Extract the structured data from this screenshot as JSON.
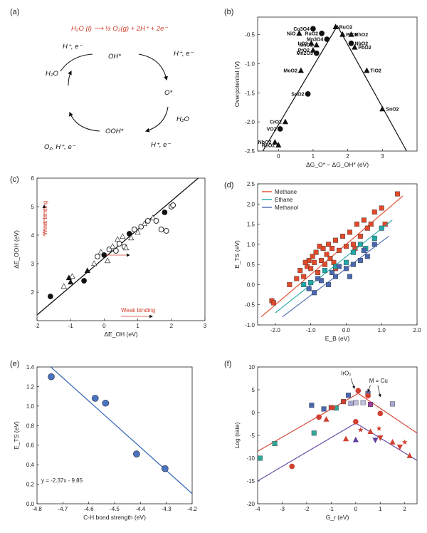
{
  "panels": {
    "a": {
      "label": "(a)",
      "equation": "H₂O (l) ⟶ ½ O₂(g) + 2H⁺ + 2e⁻",
      "species": [
        "OH*",
        "O*",
        "OOH*",
        "H₂O"
      ],
      "steps": [
        "H₂O",
        "H⁺, e⁻",
        "H⁺, e⁻",
        "H₂O",
        "H⁺, e⁻",
        "O₂, H⁺, e⁻"
      ]
    },
    "b": {
      "label": "(b)"
    },
    "c": {
      "label": "(c)"
    },
    "d": {
      "label": "(d)"
    },
    "e": {
      "label": "(e)"
    },
    "f": {
      "label": "(f)"
    }
  },
  "chart_data": [
    {
      "id": "b",
      "type": "scatter",
      "title": "",
      "xlabel": "ΔG_O* − ΔG_OH* (eV)",
      "ylabel": "Overpotential (V)",
      "xlim": [
        -0.6,
        4.0
      ],
      "ylim": [
        -2.5,
        -0.2
      ],
      "xticks": [
        0,
        1,
        2,
        3
      ],
      "yticks": [
        -2.5,
        -2.0,
        -1.5,
        -1.0,
        -0.5
      ],
      "volcano_line": [
        [
          -0.45,
          -2.5
        ],
        [
          1.7,
          -0.35
        ],
        [
          3.7,
          -2.5
        ]
      ],
      "points": [
        {
          "label": "Co3O4",
          "x": 1.0,
          "y": -0.4
        },
        {
          "label": "RuO2",
          "x": 1.65,
          "y": -0.37
        },
        {
          "label": "NiO",
          "x": 0.6,
          "y": -0.48
        },
        {
          "label": "RuO2",
          "x": 1.25,
          "y": -0.48
        },
        {
          "label": "PtO2",
          "x": 1.85,
          "y": -0.5
        },
        {
          "label": "RhO2",
          "x": 2.1,
          "y": -0.5
        },
        {
          "label": "Mn3O4",
          "x": 1.4,
          "y": -0.58
        },
        {
          "label": "IrO2",
          "x": 0.95,
          "y": -0.65
        },
        {
          "label": "MnO2",
          "x": 1.1,
          "y": -0.68
        },
        {
          "label": "NbO2",
          "x": 2.1,
          "y": -0.65
        },
        {
          "label": "PbO2",
          "x": 2.2,
          "y": -0.72
        },
        {
          "label": "PtO2",
          "x": 1.0,
          "y": -0.77
        },
        {
          "label": "Mn2O3",
          "x": 1.1,
          "y": -0.82
        },
        {
          "label": "MoO2",
          "x": 0.65,
          "y": -1.12
        },
        {
          "label": "TiO2",
          "x": 2.55,
          "y": -1.12
        },
        {
          "label": "SnO2",
          "x": 0.85,
          "y": -1.52
        },
        {
          "label": "SnO2",
          "x": 3.0,
          "y": -1.78
        },
        {
          "label": "CrO2",
          "x": 0.2,
          "y": -2.0
        },
        {
          "label": "VO2",
          "x": 0.05,
          "y": -2.12
        },
        {
          "label": "NbO2",
          "x": -0.1,
          "y": -2.35
        },
        {
          "label": "ReO2",
          "x": 0.0,
          "y": -2.4
        }
      ]
    },
    {
      "id": "c",
      "type": "scatter",
      "title": "",
      "xlabel": "ΔE_OH (eV)",
      "ylabel": "ΔE_OOH (eV)",
      "xlim": [
        -2,
        3
      ],
      "ylim": [
        1,
        6
      ],
      "xticks": [
        -2,
        -1,
        0,
        1,
        2,
        3
      ],
      "yticks": [
        2,
        3,
        4,
        5,
        6
      ],
      "fit_line": {
        "slope": 1.0,
        "intercept": 3.2
      },
      "annotations": [
        "Weak binding",
        "Weak binding"
      ],
      "points": [
        {
          "x": -1.6,
          "y": 1.85,
          "m": "circle"
        },
        {
          "x": -1.2,
          "y": 2.2,
          "m": "triangle"
        },
        {
          "x": -1.0,
          "y": 2.35,
          "m": "triangle"
        },
        {
          "x": -0.95,
          "y": 2.55,
          "m": "triangle"
        },
        {
          "x": -1.05,
          "y": 2.5,
          "m": "triangle"
        },
        {
          "x": -0.6,
          "y": 2.4,
          "m": "circle"
        },
        {
          "x": -0.5,
          "y": 2.75,
          "m": "triangle"
        },
        {
          "x": -0.3,
          "y": 3.0,
          "m": "triangle"
        },
        {
          "x": -0.2,
          "y": 3.25,
          "m": "circle"
        },
        {
          "x": -0.1,
          "y": 3.4,
          "m": "triangle"
        },
        {
          "x": 0.0,
          "y": 3.3,
          "m": "circle"
        },
        {
          "x": 0.1,
          "y": 3.1,
          "m": "triangle"
        },
        {
          "x": 0.15,
          "y": 3.5,
          "m": "circle"
        },
        {
          "x": 0.25,
          "y": 3.6,
          "m": "triangle"
        },
        {
          "x": 0.35,
          "y": 3.45,
          "m": "circle"
        },
        {
          "x": 0.4,
          "y": 3.85,
          "m": "triangle"
        },
        {
          "x": 0.45,
          "y": 3.7,
          "m": "circle"
        },
        {
          "x": 0.55,
          "y": 3.95,
          "m": "triangle"
        },
        {
          "x": 0.6,
          "y": 3.6,
          "m": "circle"
        },
        {
          "x": 0.65,
          "y": 3.55,
          "m": "triangle"
        },
        {
          "x": 0.75,
          "y": 4.05,
          "m": "circle"
        },
        {
          "x": 0.8,
          "y": 3.9,
          "m": "triangle"
        },
        {
          "x": 0.9,
          "y": 4.2,
          "m": "circle"
        },
        {
          "x": 1.0,
          "y": 4.1,
          "m": "triangle"
        },
        {
          "x": 1.1,
          "y": 4.3,
          "m": "circle"
        },
        {
          "x": 1.2,
          "y": 4.4,
          "m": "triangle"
        },
        {
          "x": 1.3,
          "y": 4.5,
          "m": "circle"
        },
        {
          "x": 1.45,
          "y": 4.6,
          "m": "triangle"
        },
        {
          "x": 1.55,
          "y": 4.5,
          "m": "circle"
        },
        {
          "x": 1.7,
          "y": 4.2,
          "m": "circle"
        },
        {
          "x": 1.8,
          "y": 4.8,
          "m": "circle"
        },
        {
          "x": 1.85,
          "y": 4.15,
          "m": "circle"
        },
        {
          "x": 2.0,
          "y": 5.0,
          "m": "circle"
        },
        {
          "x": 2.05,
          "y": 5.05,
          "m": "circle"
        }
      ]
    },
    {
      "id": "d",
      "type": "scatter",
      "title": "",
      "xlabel": "E_B (eV)",
      "ylabel": "E_TS (eV)",
      "xlim": [
        -2.5,
        2.0
      ],
      "ylim": [
        -1.0,
        2.5
      ],
      "xticks": [
        -2.0,
        -1.0,
        0.0,
        1.0,
        2.0
      ],
      "yticks": [
        -1.0,
        -0.5,
        0.0,
        0.5,
        1.0,
        1.5,
        2.0,
        2.5
      ],
      "legend": "top-left",
      "series": [
        {
          "name": "Methane",
          "color": "#e04a2a",
          "line": [
            [
              -2.4,
              -0.8
            ],
            [
              1.6,
              2.2
            ]
          ],
          "points": [
            [
              -2.1,
              -0.4
            ],
            [
              -2.05,
              -0.45
            ],
            [
              -1.6,
              0.0
            ],
            [
              -1.4,
              0.15
            ],
            [
              -1.3,
              0.35
            ],
            [
              -1.2,
              0.2
            ],
            [
              -1.1,
              0.45
            ],
            [
              -1.05,
              0.6
            ],
            [
              -1.0,
              0.4
            ],
            [
              -0.95,
              0.7
            ],
            [
              -0.9,
              0.55
            ],
            [
              -0.85,
              0.8
            ],
            [
              -0.8,
              0.3
            ],
            [
              -0.7,
              0.6
            ],
            [
              -0.65,
              0.9
            ],
            [
              -0.6,
              0.5
            ],
            [
              -0.55,
              0.75
            ],
            [
              -0.5,
              1.0
            ],
            [
              -0.45,
              0.65
            ],
            [
              -0.4,
              0.9
            ],
            [
              -0.35,
              0.55
            ],
            [
              -0.3,
              1.1
            ],
            [
              -0.2,
              0.85
            ],
            [
              -0.1,
              1.2
            ],
            [
              0.0,
              0.95
            ],
            [
              0.1,
              1.3
            ],
            [
              0.2,
              1.0
            ],
            [
              0.3,
              1.5
            ],
            [
              0.4,
              1.2
            ],
            [
              0.5,
              1.6
            ],
            [
              0.6,
              1.4
            ],
            [
              0.7,
              1.5
            ],
            [
              0.8,
              1.8
            ],
            [
              1.0,
              1.9
            ],
            [
              1.1,
              1.5
            ],
            [
              1.45,
              2.25
            ],
            [
              -0.3,
              0.4
            ],
            [
              -0.75,
              0.95
            ],
            [
              -1.15,
              0.55
            ],
            [
              0.25,
              0.9
            ]
          ]
        },
        {
          "name": "Ethane",
          "color": "#20a8a8",
          "line": [
            [
              -2.0,
              -0.7
            ],
            [
              1.3,
              1.6
            ]
          ],
          "points": [
            [
              -1.2,
              0.0
            ],
            [
              -1.0,
              0.05
            ],
            [
              -0.6,
              0.35
            ],
            [
              -0.3,
              0.45
            ],
            [
              0.0,
              0.55
            ],
            [
              0.2,
              0.8
            ],
            [
              0.4,
              1.0
            ],
            [
              0.55,
              0.9
            ],
            [
              0.8,
              1.15
            ],
            [
              1.0,
              1.4
            ]
          ]
        },
        {
          "name": "Methanol",
          "color": "#4a68b0",
          "line": [
            [
              -1.8,
              -0.8
            ],
            [
              1.2,
              1.2
            ]
          ],
          "points": [
            [
              -1.05,
              -0.1
            ],
            [
              -0.9,
              -0.2
            ],
            [
              -0.7,
              0.1
            ],
            [
              -0.5,
              0.0
            ],
            [
              -0.4,
              0.3
            ],
            [
              -0.3,
              0.2
            ],
            [
              -0.2,
              0.45
            ],
            [
              0.0,
              0.4
            ],
            [
              0.1,
              0.2
            ],
            [
              0.2,
              0.5
            ],
            [
              0.4,
              0.6
            ],
            [
              0.5,
              0.85
            ],
            [
              0.6,
              0.7
            ],
            [
              0.8,
              1.0
            ],
            [
              -0.8,
              0.15
            ]
          ]
        }
      ]
    },
    {
      "id": "e",
      "type": "scatter",
      "title": "",
      "xlabel": "C-H bond strength (eV)",
      "ylabel": "E_TS (eV)",
      "xlim": [
        -4.8,
        -4.2
      ],
      "ylim": [
        0.0,
        1.4
      ],
      "xticks": [
        -4.8,
        -4.7,
        -4.6,
        -4.5,
        -4.4,
        -4.3,
        -4.2
      ],
      "yticks": [
        0.0,
        0.2,
        0.4,
        0.6,
        0.8,
        1.0,
        1.2,
        1.4
      ],
      "equation": "y = -2.37x - 9.85",
      "fit_line": {
        "slope": -2.37,
        "intercept": -9.85
      },
      "points": [
        [
          -4.745,
          1.3
        ],
        [
          -4.575,
          1.08
        ],
        [
          -4.535,
          1.03
        ],
        [
          -4.415,
          0.51
        ],
        [
          -4.305,
          0.36
        ]
      ]
    },
    {
      "id": "f",
      "type": "scatter",
      "title": "",
      "xlabel": "G_r (eV)",
      "ylabel": "Log (rate)",
      "xlim": [
        -4,
        2.5
      ],
      "ylim": [
        -20,
        10
      ],
      "xticks": [
        -4,
        -3,
        -2,
        -1,
        0,
        1,
        2
      ],
      "yticks": [
        -20,
        -15,
        -10,
        -5,
        0,
        5,
        10
      ],
      "annotations": [
        "IrO₂",
        "M = Cu"
      ],
      "volcano_lines": [
        {
          "color": "#d04030",
          "points": [
            [
              -4,
              -8.5
            ],
            [
              0.1,
              4.2
            ],
            [
              2.5,
              -4.5
            ]
          ]
        },
        {
          "color": "#6040a0",
          "points": [
            [
              -4,
              -15
            ],
            [
              0.0,
              -2.3
            ],
            [
              2.5,
              -10.5
            ]
          ]
        }
      ],
      "points": [
        {
          "x": -3.9,
          "y": -10,
          "m": "square",
          "c": "#30a898"
        },
        {
          "x": -3.3,
          "y": -6.8,
          "m": "square",
          "c": "#30a898"
        },
        {
          "x": -2.6,
          "y": -11.8,
          "m": "circle",
          "c": "#d04030"
        },
        {
          "x": -1.8,
          "y": 1.6,
          "m": "square",
          "c": "#4a68b0"
        },
        {
          "x": -1.7,
          "y": -4.5,
          "m": "square",
          "c": "#30a898"
        },
        {
          "x": -1.3,
          "y": 0.8,
          "m": "square",
          "c": "#4a68b0"
        },
        {
          "x": -1.0,
          "y": 1.1,
          "m": "square",
          "c": "#d04030"
        },
        {
          "x": -0.8,
          "y": 1.0,
          "m": "square",
          "c": "#30a898"
        },
        {
          "x": -0.5,
          "y": 2.4,
          "m": "square",
          "c": "#d04030"
        },
        {
          "x": -0.3,
          "y": 3.8,
          "m": "square",
          "c": "#4a68b0"
        },
        {
          "x": -0.2,
          "y": 2.0,
          "m": "square",
          "c": "#a8a8d8"
        },
        {
          "x": 0.0,
          "y": 2.2,
          "m": "square",
          "c": "#c0c0e0"
        },
        {
          "x": 0.3,
          "y": 2.2,
          "m": "square",
          "c": "#c0c0e0"
        },
        {
          "x": 0.5,
          "y": 4.2,
          "m": "square",
          "c": "#4a68b0"
        },
        {
          "x": 0.6,
          "y": 1.8,
          "m": "square",
          "c": "#a040a0"
        },
        {
          "x": -1.5,
          "y": -1.0,
          "m": "circle",
          "c": "#d04030"
        },
        {
          "x": 0.0,
          "y": -2.0,
          "m": "circle",
          "c": "#d04030"
        },
        {
          "x": 0.1,
          "y": 4.8,
          "m": "circle",
          "c": "#d04030"
        },
        {
          "x": 0.5,
          "y": 3.7,
          "m": "circle",
          "c": "#d04030"
        },
        {
          "x": 1.0,
          "y": -0.2,
          "m": "circle",
          "c": "#d04030"
        },
        {
          "x": 1.5,
          "y": 1.9,
          "m": "square",
          "c": "#a8a8d8"
        },
        {
          "x": -1.2,
          "y": -1.5,
          "m": "triangle",
          "c": "#d04030"
        },
        {
          "x": -0.9,
          "y": 1.1,
          "m": "star",
          "c": "#d04030"
        },
        {
          "x": -0.4,
          "y": -5.8,
          "m": "triangle",
          "c": "#d04030"
        },
        {
          "x": 0.0,
          "y": -6.0,
          "m": "triangle",
          "c": "#6040a0"
        },
        {
          "x": 0.2,
          "y": -3.8,
          "m": "star",
          "c": "#d04030"
        },
        {
          "x": 0.6,
          "y": -4.2,
          "m": "triangle",
          "c": "#d04030"
        },
        {
          "x": 0.8,
          "y": -6.0,
          "m": "invtriangle",
          "c": "#6040a0"
        },
        {
          "x": 0.95,
          "y": -3.5,
          "m": "star",
          "c": "#d04030"
        },
        {
          "x": 1.0,
          "y": -5.5,
          "m": "invtriangle",
          "c": "#d04030"
        },
        {
          "x": 1.5,
          "y": -6.5,
          "m": "triangle",
          "c": "#d04030"
        },
        {
          "x": 1.8,
          "y": -7.5,
          "m": "invtriangle",
          "c": "#d04030"
        },
        {
          "x": 2.2,
          "y": -9.5,
          "m": "triangle",
          "c": "#d04030"
        },
        {
          "x": 2.0,
          "y": -6.5,
          "m": "star",
          "c": "#d04030"
        }
      ]
    }
  ]
}
